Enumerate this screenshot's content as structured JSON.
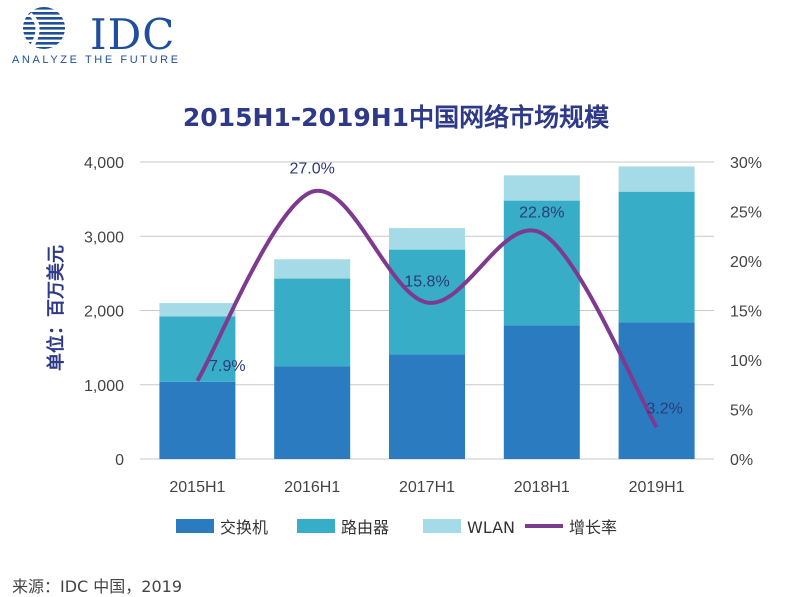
{
  "logo": {
    "text": "IDC",
    "tagline": "ANALYZE THE FUTURE"
  },
  "source": "来源：IDC 中国，2019",
  "colors": {
    "switch": "#2a7bc0",
    "router": "#37adc7",
    "wlan": "#a4dbe6",
    "growth": "#7e3a8e",
    "title": "#2e3a87"
  },
  "chart_data": {
    "type": "bar",
    "stacked": true,
    "title": "2015H1-2019H1中国网络市场规模",
    "ylabel": "单位：百万美元",
    "categories": [
      "2015H1",
      "2016H1",
      "2017H1",
      "2018H1",
      "2019H1"
    ],
    "ylim": [
      0,
      4000
    ],
    "yticks": [
      "0",
      "1,000",
      "2,000",
      "3,000",
      "4,000"
    ],
    "y2lim": [
      0,
      30
    ],
    "y2ticks": [
      "0%",
      "5%",
      "10%",
      "15%",
      "20%",
      "25%",
      "30%"
    ],
    "series": [
      {
        "name": "交换机",
        "values": [
          1040,
          1250,
          1410,
          1800,
          1840
        ]
      },
      {
        "name": "路由器",
        "values": [
          880,
          1180,
          1410,
          1680,
          1760
        ]
      },
      {
        "name": "WLAN",
        "values": [
          180,
          260,
          290,
          340,
          340
        ]
      }
    ],
    "line_series": {
      "name": "增长率",
      "values": [
        7.9,
        27.0,
        15.8,
        22.8,
        3.2
      ],
      "labels": [
        "7.9%",
        "27.0%",
        "15.8%",
        "22.8%",
        "3.2%"
      ]
    },
    "legend": {
      "position": "bottom"
    },
    "grid": true
  }
}
